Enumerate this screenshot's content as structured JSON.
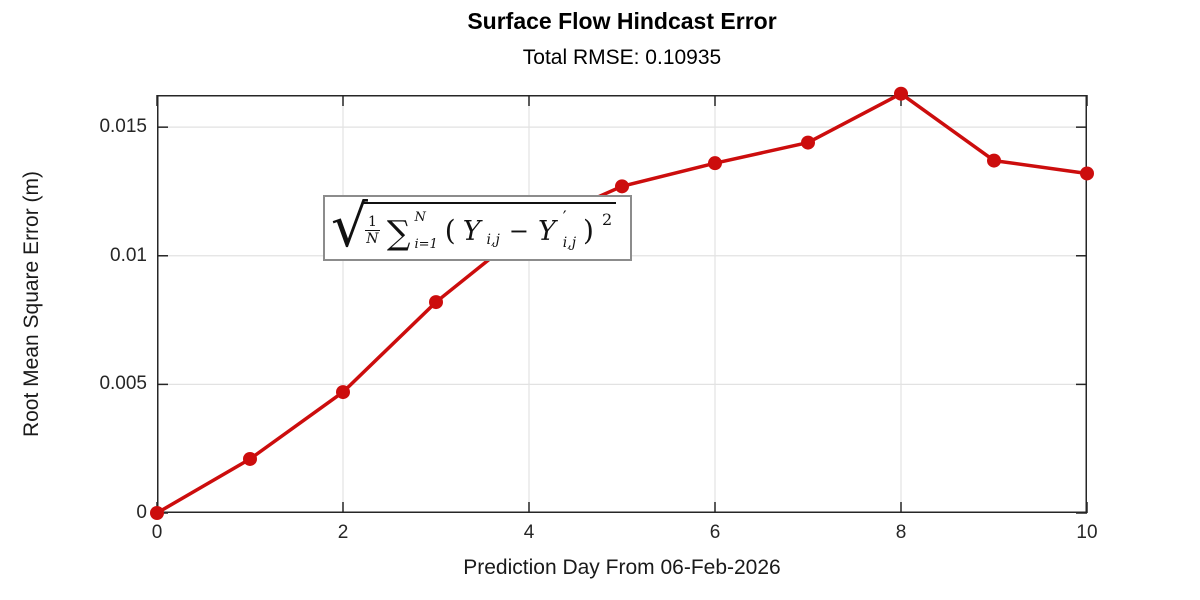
{
  "header": {
    "title": "Surface Flow Hindcast Error",
    "subtitle": "Total RMSE: 0.10935"
  },
  "chart_data": {
    "type": "line",
    "title": "Surface Flow Hindcast Error",
    "subtitle": "Total RMSE: 0.10935",
    "xlabel": "Prediction Day From 06-Feb-2026",
    "ylabel": "Root Mean Square Error (m)",
    "x": [
      0,
      1,
      2,
      3,
      4,
      5,
      6,
      7,
      8,
      9,
      10
    ],
    "series": [
      {
        "name": "RMSE",
        "values": [
          0.0,
          0.0021,
          0.0047,
          0.0082,
          0.0111,
          0.0127,
          0.0136,
          0.0144,
          0.0163,
          0.0137,
          0.0132
        ],
        "color": "#CC0D0D",
        "marker": "circle",
        "line_width": 3.5,
        "marker_radius": 7
      }
    ],
    "xlim": [
      0,
      10
    ],
    "ylim": [
      0,
      0.01625
    ],
    "xticks": [
      0,
      2,
      4,
      6,
      8,
      10
    ],
    "xtick_labels": [
      "0",
      "2",
      "4",
      "6",
      "8",
      "10"
    ],
    "yticks": [
      0,
      0.005,
      0.01,
      0.015
    ],
    "ytick_labels": [
      "0",
      "0.005",
      "0.01",
      "0.015"
    ],
    "grid": true,
    "legend": null
  },
  "formula": {
    "frac_num": "1",
    "frac_den": "N",
    "sum_symbol": "∑",
    "sum_upper": "N",
    "sum_lower": "i=1",
    "open_paren": "(",
    "y_symbol": "Y",
    "y_sub": "i,j",
    "minus": "−",
    "y_symbol2": "Y",
    "prime": "′",
    "y_sub2": "i,j",
    "close_paren": ")",
    "exponent": "2"
  },
  "colors": {
    "line": "#CC0D0D",
    "grid": "#E2E2E2",
    "axis": "#262626",
    "text": "#262626",
    "formula_border": "#8C8C8C",
    "background": "#FFFFFF"
  }
}
